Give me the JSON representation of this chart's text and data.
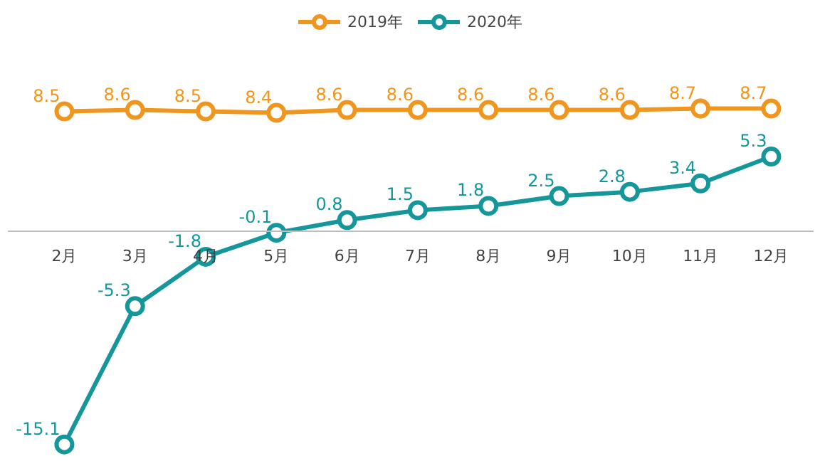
{
  "chart_data": {
    "type": "line",
    "categories": [
      "2月",
      "3月",
      "4月",
      "5月",
      "6月",
      "7月",
      "8月",
      "9月",
      "10月",
      "11月",
      "12月"
    ],
    "series": [
      {
        "name": "2019年",
        "color": "#f0961e",
        "values": [
          8.5,
          8.6,
          8.5,
          8.4,
          8.6,
          8.6,
          8.6,
          8.6,
          8.6,
          8.7,
          8.7
        ]
      },
      {
        "name": "2020年",
        "color": "#14969b",
        "values": [
          -15.1,
          -5.3,
          -1.8,
          -0.1,
          0.8,
          1.5,
          1.8,
          2.5,
          2.8,
          3.4,
          5.3
        ]
      }
    ],
    "data_labels": true,
    "legend": "top",
    "marker": "circle",
    "line_style": "solid",
    "grid": false
  }
}
